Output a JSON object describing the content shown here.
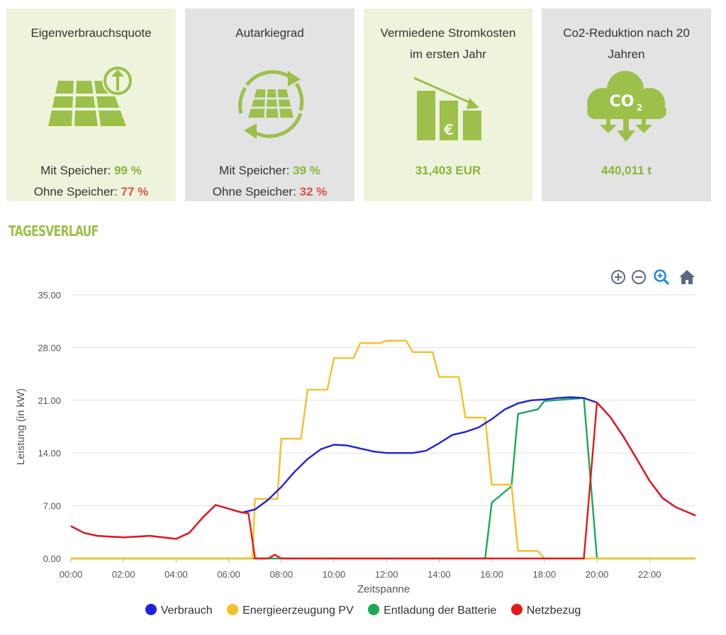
{
  "cards": [
    {
      "title": "Eigenverbrauchsquote",
      "line1_label": "Mit Speicher: ",
      "line1_value": "99 %",
      "line2_label": "Ohne Speicher: ",
      "line2_value": "77 %",
      "icon": "solar-panel-upload-icon"
    },
    {
      "title": "Autarkiegrad",
      "line1_label": "Mit Speicher: ",
      "line1_value": "39 %",
      "line2_label": "Ohne Speicher: ",
      "line2_value": "32 %",
      "icon": "solar-panel-cycle-icon"
    },
    {
      "title": "Vermiedene Stromkosten im ersten Jahr",
      "value": "31,403 EUR",
      "icon": "euro-bars-decline-icon"
    },
    {
      "title": "Co2-Reduktion nach 20 Jahren",
      "value": "440,011 t",
      "icon": "co2-cloud-icon",
      "icon_text": "CO",
      "icon_sub": "2"
    }
  ],
  "section_title": "TAGESVERLAUF",
  "toolbar": {
    "zoom_in": "zoom-in-icon",
    "zoom_out": "zoom-out-icon",
    "zoom_select": "magnifier-icon",
    "reset": "home-icon"
  },
  "colors": {
    "green_accent": "#9cc04a",
    "red_accent": "#d9534f",
    "verbrauch": "#2020e0",
    "pv": "#f5c02a",
    "batterie": "#1aaa55",
    "netz": "#e81818"
  },
  "chart_data": {
    "type": "line",
    "ylabel": "Leistung (in kW)",
    "xlabel": "Zeitspanne",
    "y_ticks": [
      "35.00",
      "28.00",
      "21.00",
      "14.00",
      "7.00",
      "0.00"
    ],
    "x_ticks": [
      "00:00",
      "02:00",
      "04:00",
      "06:00",
      "08:00",
      "10:00",
      "12:00",
      "14:00",
      "16:00",
      "18:00",
      "20:00",
      "22:00"
    ],
    "ylim": [
      0,
      35
    ],
    "xlim": [
      0,
      23.75
    ],
    "grid": true,
    "legend_position": "bottom",
    "series": [
      {
        "name": "Verbrauch",
        "color": "#2020e0",
        "x": [
          0,
          0.5,
          1,
          1.5,
          2,
          2.5,
          3,
          3.5,
          4,
          4.5,
          5,
          5.5,
          6,
          6.5,
          7,
          7.5,
          8,
          8.5,
          9,
          9.5,
          10,
          10.5,
          11,
          11.5,
          12,
          12.5,
          13,
          13.5,
          14,
          14.5,
          15,
          15.5,
          16,
          16.5,
          17,
          17.5,
          18,
          18.5,
          19,
          19.5,
          20,
          20.5,
          21,
          21.5,
          22,
          22.5,
          23,
          23.75
        ],
        "y": [
          4.3,
          3.4,
          3.0,
          2.9,
          2.8,
          2.9,
          3.0,
          2.8,
          2.6,
          3.4,
          5.4,
          7.1,
          6.6,
          6.1,
          6.5,
          7.8,
          9.5,
          11.5,
          13.2,
          14.5,
          15.1,
          15.0,
          14.6,
          14.2,
          14.0,
          14.0,
          14.0,
          14.3,
          15.3,
          16.4,
          16.8,
          17.4,
          18.5,
          19.8,
          20.6,
          21.0,
          21.1,
          21.3,
          21.4,
          21.3,
          20.7,
          18.8,
          16.2,
          13.3,
          10.3,
          8.0,
          6.8,
          5.7
        ]
      },
      {
        "name": "Energieerzeugung PV",
        "color": "#f5c02a",
        "x": [
          0,
          6.9,
          7.0,
          7.5,
          7.85,
          8.0,
          8.75,
          9.0,
          9.75,
          10.0,
          10.75,
          11.0,
          11.75,
          12.0,
          12.75,
          13.0,
          13.75,
          14.0,
          14.75,
          15.0,
          15.75,
          16.0,
          16.75,
          17.0,
          17.75,
          18.0,
          23.75
        ],
        "y": [
          0,
          0,
          7.9,
          7.9,
          7.9,
          15.9,
          15.9,
          22.4,
          22.4,
          26.6,
          26.6,
          28.6,
          28.6,
          28.9,
          28.9,
          27.4,
          27.4,
          24.1,
          24.1,
          18.7,
          18.7,
          9.8,
          9.8,
          1.0,
          1.0,
          0,
          0
        ]
      },
      {
        "name": "Entladung der Batterie",
        "color": "#1aaa55",
        "x": [
          0,
          15.75,
          16.0,
          16.75,
          17.0,
          17.75,
          18.0,
          19.5,
          20.0,
          23.75
        ],
        "y": [
          0,
          0,
          7.4,
          9.6,
          19.2,
          19.8,
          20.9,
          21.3,
          0,
          0
        ]
      },
      {
        "name": "Netzbezug",
        "color": "#e81818",
        "x": [
          0,
          0.5,
          1,
          1.5,
          2,
          2.5,
          3,
          3.5,
          4,
          4.5,
          5,
          5.5,
          6,
          6.5,
          6.75,
          7.0,
          7.5,
          7.75,
          8.0,
          19.5,
          20.0,
          20.5,
          21,
          21.5,
          22,
          22.5,
          23,
          23.75
        ],
        "y": [
          4.3,
          3.4,
          3.0,
          2.9,
          2.8,
          2.9,
          3.0,
          2.8,
          2.6,
          3.4,
          5.4,
          7.1,
          6.6,
          6.1,
          6.0,
          0,
          0,
          0.5,
          0,
          0,
          20.7,
          18.8,
          16.2,
          13.3,
          10.3,
          8.0,
          6.8,
          5.7
        ]
      }
    ]
  }
}
